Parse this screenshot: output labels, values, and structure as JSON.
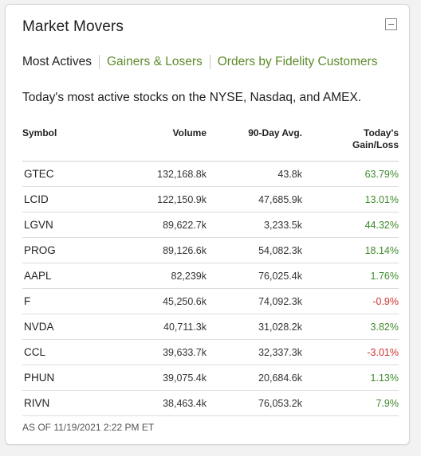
{
  "widget": {
    "title": "Market Movers",
    "tabs": [
      {
        "label": "Most Actives",
        "active": true
      },
      {
        "label": "Gainers & Losers",
        "active": false
      },
      {
        "label": "Orders by Fidelity Customers",
        "active": false
      }
    ],
    "description": "Today's most active stocks on the NYSE, Nasdaq, and AMEX.",
    "columns": {
      "symbol": "Symbol",
      "volume": "Volume",
      "avg90": "90-Day Avg.",
      "change_line1": "Today's",
      "change_line2": "Gain/Loss"
    },
    "rows": [
      {
        "symbol": "GTEC",
        "volume": "132,168.8k",
        "avg90": "43.8k",
        "change": "63.79%",
        "direction": "pos"
      },
      {
        "symbol": "LCID",
        "volume": "122,150.9k",
        "avg90": "47,685.9k",
        "change": "13.01%",
        "direction": "pos"
      },
      {
        "symbol": "LGVN",
        "volume": "89,622.7k",
        "avg90": "3,233.5k",
        "change": "44.32%",
        "direction": "pos"
      },
      {
        "symbol": "PROG",
        "volume": "89,126.6k",
        "avg90": "54,082.3k",
        "change": "18.14%",
        "direction": "pos"
      },
      {
        "symbol": "AAPL",
        "volume": "82,239k",
        "avg90": "76,025.4k",
        "change": "1.76%",
        "direction": "pos"
      },
      {
        "symbol": "F",
        "volume": "45,250.6k",
        "avg90": "74,092.3k",
        "change": "-0.9%",
        "direction": "neg"
      },
      {
        "symbol": "NVDA",
        "volume": "40,711.3k",
        "avg90": "31,028.2k",
        "change": "3.82%",
        "direction": "pos"
      },
      {
        "symbol": "CCL",
        "volume": "39,633.7k",
        "avg90": "32,337.3k",
        "change": "-3.01%",
        "direction": "neg"
      },
      {
        "symbol": "PHUN",
        "volume": "39,075.4k",
        "avg90": "20,684.6k",
        "change": "1.13%",
        "direction": "pos"
      },
      {
        "symbol": "RIVN",
        "volume": "38,463.4k",
        "avg90": "76,053.2k",
        "change": "7.9%",
        "direction": "pos"
      }
    ],
    "as_of": "AS OF 11/19/2021 2:22 PM ET",
    "collapse_icon": "minus-box-icon",
    "colors": {
      "positive": "#3f8a2c",
      "negative": "#d0312d",
      "link": "#5d8a2a"
    }
  }
}
